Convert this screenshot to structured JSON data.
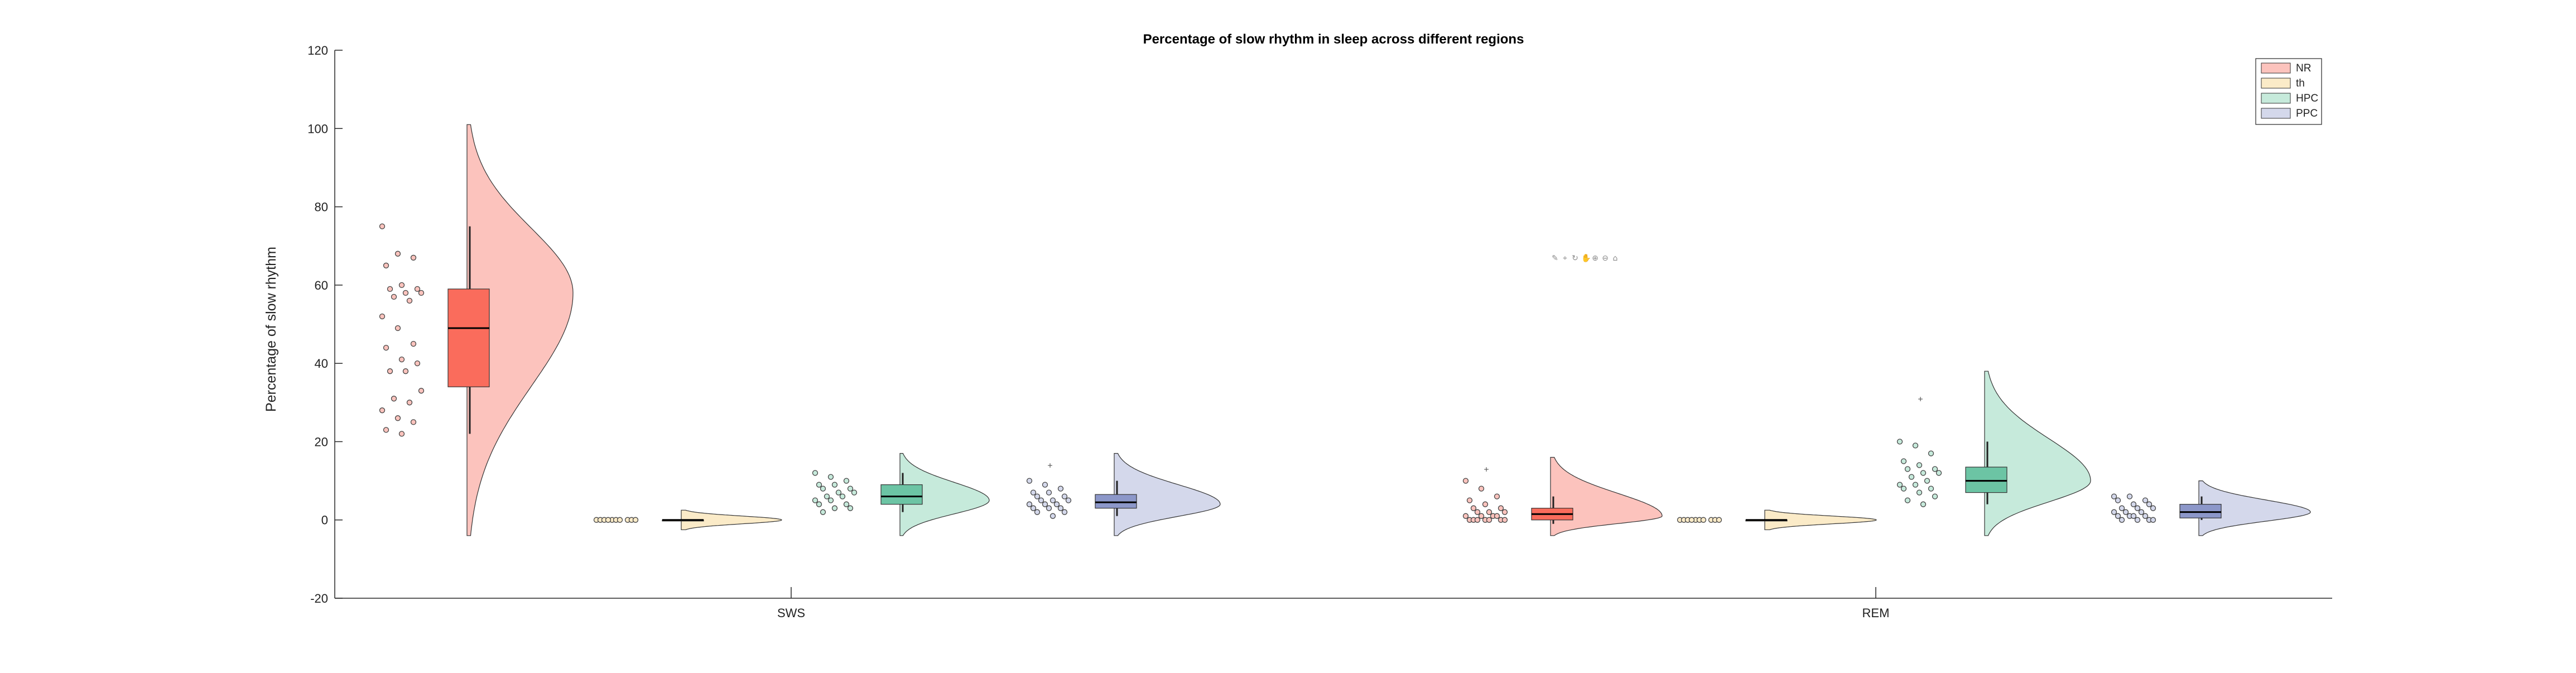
{
  "chart_data": {
    "type": "raincloud",
    "title": "Percentage of slow rhythm in sleep across different regions",
    "xlabel": "",
    "ylabel": "Percentage of slow rhythm",
    "ylim": [
      -20,
      120
    ],
    "yticks": [
      -20,
      0,
      20,
      40,
      60,
      80,
      100,
      120
    ],
    "categories": [
      "SWS",
      "REM"
    ],
    "legend": {
      "placement": "top-right",
      "entries": [
        "NR",
        "th",
        "HPC",
        "PPC"
      ]
    },
    "grid": false,
    "series": [
      {
        "name": "NR",
        "color": "#FA6C5C",
        "light_color": "#FCC3BD",
        "groups": [
          {
            "category": "SWS",
            "box": {
              "whisker_low": 22,
              "q1": 34,
              "median": 49,
              "q3": 59,
              "whisker_high": 75
            },
            "violin": {
              "min": -4,
              "max": 101,
              "mode": 58
            },
            "points": [
              75,
              68,
              67,
              65,
              60,
              59,
              59,
              58,
              58,
              57,
              56,
              52,
              49,
              45,
              44,
              41,
              40,
              38,
              38,
              33,
              31,
              30,
              28,
              26,
              25,
              23,
              22
            ],
            "outliers": []
          },
          {
            "category": "REM",
            "box": {
              "whisker_low": -1,
              "q1": 0,
              "median": 1.5,
              "q3": 3,
              "whisker_high": 6
            },
            "violin": {
              "min": -4,
              "max": 16,
              "mode": 1
            },
            "points": [
              10,
              8,
              6,
              5,
              4,
              3,
              3,
              2,
              2,
              2,
              1,
              1,
              1,
              1,
              0,
              0,
              0,
              0,
              0,
              0,
              0
            ],
            "outliers": [
              13
            ]
          }
        ]
      },
      {
        "name": "th",
        "color": "#F5D48A",
        "light_color": "#FBEBC8",
        "groups": [
          {
            "category": "SWS",
            "box": {
              "whisker_low": 0,
              "q1": 0,
              "median": 0,
              "q3": 0,
              "whisker_high": 0
            },
            "violin": {
              "min": -2.5,
              "max": 2.5,
              "mode": 0
            },
            "points": [
              0,
              0,
              0,
              0,
              0,
              0,
              0,
              0,
              0,
              0
            ],
            "outliers": []
          },
          {
            "category": "REM",
            "box": {
              "whisker_low": 0,
              "q1": 0,
              "median": 0,
              "q3": 0,
              "whisker_high": 0
            },
            "violin": {
              "min": -2.5,
              "max": 2.5,
              "mode": 0
            },
            "points": [
              0,
              0,
              0,
              0,
              0,
              0,
              0,
              0,
              0,
              0
            ],
            "outliers": []
          }
        ]
      },
      {
        "name": "HPC",
        "color": "#6CC4A4",
        "light_color": "#C6EADB",
        "groups": [
          {
            "category": "SWS",
            "box": {
              "whisker_low": 2,
              "q1": 4,
              "median": 6,
              "q3": 9,
              "whisker_high": 12
            },
            "violin": {
              "min": -4,
              "max": 17,
              "mode": 5
            },
            "points": [
              12,
              11,
              10,
              9,
              9,
              8,
              8,
              7,
              7,
              6,
              6,
              5,
              5,
              4,
              4,
              3,
              3,
              2
            ],
            "outliers": []
          },
          {
            "category": "REM",
            "box": {
              "whisker_low": 4,
              "q1": 7,
              "median": 10,
              "q3": 13.5,
              "whisker_high": 20
            },
            "violin": {
              "min": -4,
              "max": 38,
              "mode": 10
            },
            "points": [
              20,
              19,
              17,
              15,
              14,
              13,
              13,
              12,
              12,
              11,
              10,
              9,
              9,
              8,
              8,
              7,
              6,
              5,
              4
            ],
            "outliers": [
              31
            ]
          }
        ]
      },
      {
        "name": "PPC",
        "color": "#8C97C9",
        "light_color": "#D4D8EB",
        "groups": [
          {
            "category": "SWS",
            "box": {
              "whisker_low": 1,
              "q1": 3,
              "median": 4.5,
              "q3": 6.5,
              "whisker_high": 10
            },
            "violin": {
              "min": -4,
              "max": 17,
              "mode": 4
            },
            "points": [
              10,
              9,
              8,
              7,
              7,
              6,
              6,
              5,
              5,
              5,
              4,
              4,
              4,
              3,
              3,
              3,
              2,
              2,
              1
            ],
            "outliers": [
              14
            ]
          },
          {
            "category": "REM",
            "box": {
              "whisker_low": 0,
              "q1": 0.5,
              "median": 2,
              "q3": 4,
              "whisker_high": 6
            },
            "violin": {
              "min": -4,
              "max": 10,
              "mode": 2
            },
            "points": [
              6,
              6,
              5,
              5,
              4,
              4,
              3,
              3,
              3,
              2,
              2,
              2,
              1,
              1,
              1,
              1,
              0,
              0,
              0,
              0
            ],
            "outliers": []
          }
        ]
      }
    ]
  },
  "toolbar": {
    "icons": [
      "brush-icon",
      "datatip-icon",
      "rotate-icon",
      "pan-icon",
      "zoom-in-icon",
      "zoom-out-icon",
      "home-icon"
    ]
  }
}
